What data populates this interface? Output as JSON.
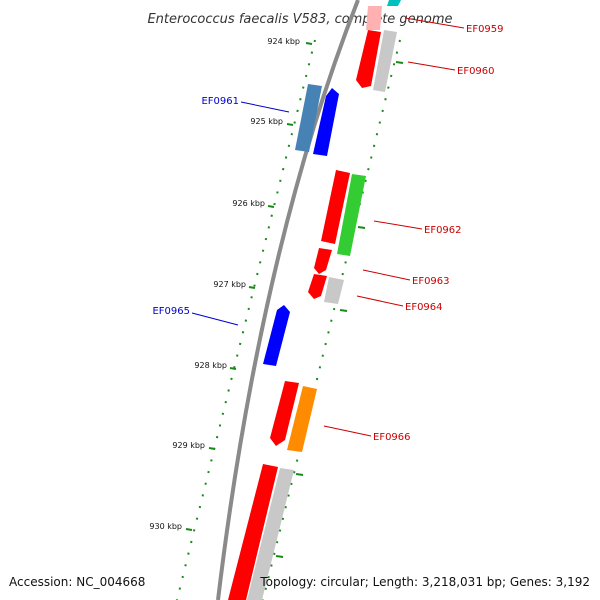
{
  "title": "Enterococcus faecalis V583, complete genome",
  "accession": "Accession: NC_004668",
  "summary": "Topology: circular; Length: 3,218,031 bp; Genes: 3,192",
  "colors": {
    "backbone": "#8a8a8a",
    "tick": "#1a8a1a",
    "forward_label": "#cc0000",
    "reverse_label": "#0000cc",
    "red": "#ff0000",
    "grey": "#c8c8c8",
    "green": "#33cc33",
    "blue": "#0000ff",
    "steelblue": "#4682b4",
    "orange": "#ff8c00",
    "cyan": "#00bfbf",
    "pink": "#ffb0b0"
  },
  "kbp_labels": [
    "924 kbp",
    "925 kbp",
    "926 kbp",
    "927 kbp",
    "928 kbp",
    "929 kbp",
    "930 kbp"
  ],
  "gene_labels": [
    {
      "text": "EF0959",
      "strand": "forward"
    },
    {
      "text": "EF0960",
      "strand": "forward"
    },
    {
      "text": "EF0961",
      "strand": "reverse"
    },
    {
      "text": "EF0962",
      "strand": "forward"
    },
    {
      "text": "EF0963",
      "strand": "forward"
    },
    {
      "text": "EF0964",
      "strand": "forward"
    },
    {
      "text": "EF0965",
      "strand": "reverse"
    },
    {
      "text": "EF0966",
      "strand": "forward"
    }
  ]
}
